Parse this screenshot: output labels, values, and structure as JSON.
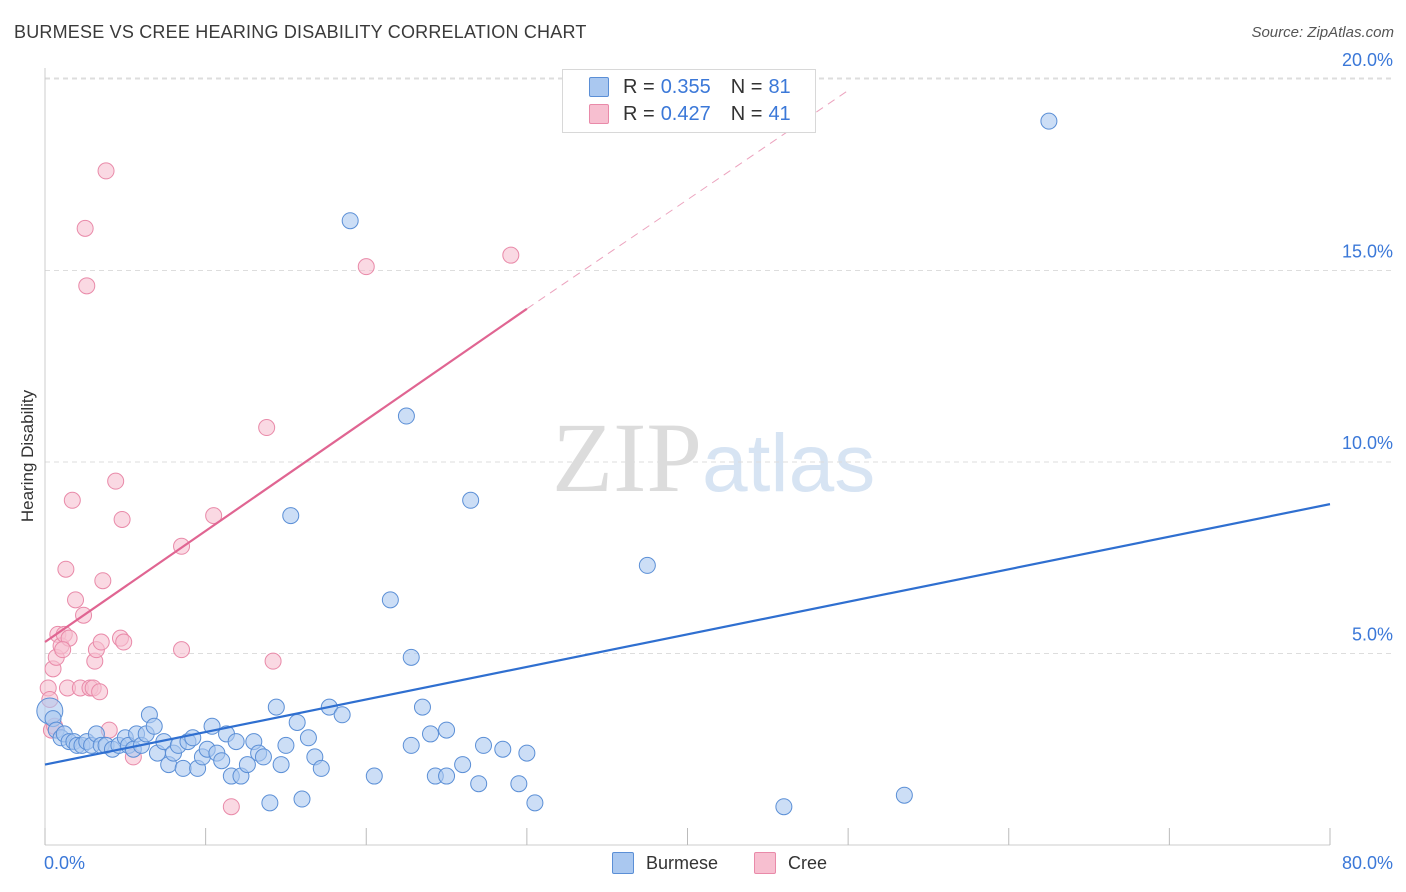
{
  "header": {
    "title": "BURMESE VS CREE HEARING DISABILITY CORRELATION CHART",
    "source": "Source: ZipAtlas.com"
  },
  "watermark": {
    "zip": "ZIP",
    "atlas": "atlas"
  },
  "legend_top": [
    {
      "r_label": "R =",
      "r_value": "0.355",
      "n_label": "N =",
      "n_value": "81"
    },
    {
      "r_label": "R =",
      "r_value": "0.427",
      "n_label": "N =",
      "n_value": "41"
    }
  ],
  "legend_bottom": [
    {
      "label": "Burmese"
    },
    {
      "label": "Cree"
    }
  ],
  "colors": {
    "burmese_fill": "#aac8f0",
    "burmese_stroke": "#5b8fd6",
    "burmese_line": "#2f6fd0",
    "cree_fill": "#f7bfd0",
    "cree_stroke": "#e98aa9",
    "cree_line": "#e06592",
    "tick_label": "#3b78d8",
    "grid": "#dddddd"
  },
  "chart_data": {
    "type": "scatter",
    "title": "BURMESE VS CREE HEARING DISABILITY CORRELATION CHART",
    "xlabel": "",
    "ylabel": "Hearing Disability",
    "xlim": [
      0,
      80
    ],
    "ylim": [
      0,
      21
    ],
    "x_tick_labels": [
      "0.0%",
      "80.0%"
    ],
    "y_ticks": [
      5,
      10,
      15,
      20
    ],
    "y_tick_labels": [
      "5.0%",
      "10.0%",
      "15.0%",
      "20.0%"
    ],
    "grid": true,
    "legend_position": "top-center",
    "series": [
      {
        "name": "Burmese",
        "r": 0.355,
        "n": 81,
        "trend": {
          "x": [
            0,
            80
          ],
          "y": [
            2.1,
            8.9
          ]
        },
        "points": [
          [
            0.3,
            3.5
          ],
          [
            0.5,
            3.3
          ],
          [
            0.7,
            3.0
          ],
          [
            1.0,
            2.8
          ],
          [
            1.2,
            2.9
          ],
          [
            1.5,
            2.7
          ],
          [
            1.8,
            2.7
          ],
          [
            2.0,
            2.6
          ],
          [
            2.3,
            2.6
          ],
          [
            2.6,
            2.7
          ],
          [
            2.9,
            2.6
          ],
          [
            3.2,
            2.9
          ],
          [
            3.5,
            2.6
          ],
          [
            3.8,
            2.6
          ],
          [
            4.2,
            2.5
          ],
          [
            4.6,
            2.6
          ],
          [
            5.0,
            2.8
          ],
          [
            5.2,
            2.6
          ],
          [
            5.5,
            2.5
          ],
          [
            5.7,
            2.9
          ],
          [
            6.0,
            2.6
          ],
          [
            6.3,
            2.9
          ],
          [
            6.5,
            3.4
          ],
          [
            6.8,
            3.1
          ],
          [
            7.0,
            2.4
          ],
          [
            7.4,
            2.7
          ],
          [
            7.7,
            2.1
          ],
          [
            8.0,
            2.4
          ],
          [
            8.3,
            2.6
          ],
          [
            8.6,
            2.0
          ],
          [
            8.9,
            2.7
          ],
          [
            9.2,
            2.8
          ],
          [
            9.5,
            2.0
          ],
          [
            9.8,
            2.3
          ],
          [
            10.1,
            2.5
          ],
          [
            10.4,
            3.1
          ],
          [
            10.7,
            2.4
          ],
          [
            11.0,
            2.2
          ],
          [
            11.3,
            2.9
          ],
          [
            11.6,
            1.8
          ],
          [
            11.9,
            2.7
          ],
          [
            12.2,
            1.8
          ],
          [
            12.6,
            2.1
          ],
          [
            13.0,
            2.7
          ],
          [
            13.3,
            2.4
          ],
          [
            13.6,
            2.3
          ],
          [
            14.0,
            1.1
          ],
          [
            14.4,
            3.6
          ],
          [
            14.7,
            2.1
          ],
          [
            15.0,
            2.6
          ],
          [
            15.3,
            8.6
          ],
          [
            15.7,
            3.2
          ],
          [
            16.0,
            1.2
          ],
          [
            16.4,
            2.8
          ],
          [
            16.8,
            2.3
          ],
          [
            17.2,
            2.0
          ],
          [
            17.7,
            3.6
          ],
          [
            18.5,
            3.4
          ],
          [
            19.0,
            16.3
          ],
          [
            20.5,
            1.8
          ],
          [
            21.5,
            6.4
          ],
          [
            22.5,
            11.2
          ],
          [
            22.8,
            2.6
          ],
          [
            23.5,
            3.6
          ],
          [
            24.0,
            2.9
          ],
          [
            24.3,
            1.8
          ],
          [
            25.0,
            3.0
          ],
          [
            26.0,
            2.1
          ],
          [
            26.5,
            9.0
          ],
          [
            27.0,
            1.6
          ],
          [
            27.3,
            2.6
          ],
          [
            28.5,
            2.5
          ],
          [
            29.5,
            1.6
          ],
          [
            30.5,
            1.1
          ],
          [
            22.8,
            4.9
          ],
          [
            25.0,
            1.8
          ],
          [
            30.0,
            2.4
          ],
          [
            37.5,
            7.3
          ],
          [
            46.0,
            1.0
          ],
          [
            53.5,
            1.3
          ],
          [
            62.5,
            18.9
          ]
        ]
      },
      {
        "name": "Cree",
        "r": 0.427,
        "n": 41,
        "trend": {
          "x": [
            0,
            30
          ],
          "y": [
            5.3,
            14.0
          ]
        },
        "trend_extension": {
          "x": [
            30,
            50
          ],
          "y": [
            14.0,
            19.7
          ]
        },
        "points": [
          [
            0.2,
            4.1
          ],
          [
            0.3,
            3.8
          ],
          [
            0.4,
            3.0
          ],
          [
            0.5,
            4.6
          ],
          [
            0.7,
            4.9
          ],
          [
            0.8,
            5.5
          ],
          [
            1.0,
            5.2
          ],
          [
            1.2,
            5.5
          ],
          [
            1.3,
            7.2
          ],
          [
            1.4,
            4.1
          ],
          [
            1.5,
            5.4
          ],
          [
            1.7,
            9.0
          ],
          [
            1.9,
            6.4
          ],
          [
            2.2,
            4.1
          ],
          [
            2.4,
            6.0
          ],
          [
            2.5,
            16.1
          ],
          [
            2.6,
            14.6
          ],
          [
            2.8,
            4.1
          ],
          [
            3.0,
            4.1
          ],
          [
            3.1,
            4.8
          ],
          [
            3.2,
            5.1
          ],
          [
            3.4,
            4.0
          ],
          [
            3.5,
            5.3
          ],
          [
            3.6,
            6.9
          ],
          [
            3.8,
            17.6
          ],
          [
            4.0,
            3.0
          ],
          [
            4.4,
            9.5
          ],
          [
            4.7,
            5.4
          ],
          [
            4.9,
            5.3
          ],
          [
            4.8,
            8.5
          ],
          [
            5.5,
            2.3
          ],
          [
            8.5,
            5.1
          ],
          [
            8.5,
            7.8
          ],
          [
            10.5,
            8.6
          ],
          [
            11.6,
            1.0
          ],
          [
            13.8,
            10.9
          ],
          [
            14.2,
            4.8
          ],
          [
            20.0,
            15.1
          ],
          [
            29.0,
            15.4
          ],
          [
            0.6,
            3.1
          ],
          [
            1.1,
            5.1
          ]
        ]
      }
    ]
  }
}
